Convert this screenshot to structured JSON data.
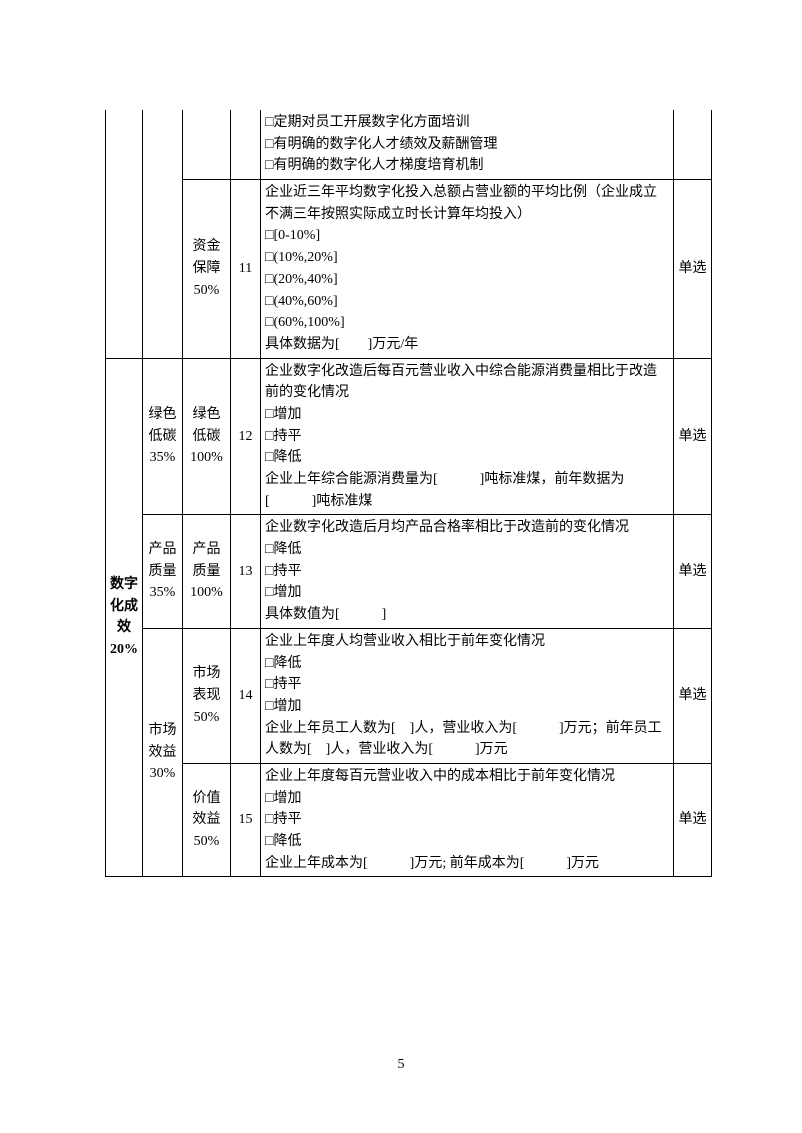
{
  "pageNumber": "5",
  "rows": [
    {
      "a": "",
      "b": "",
      "c": "",
      "d": "",
      "content": "□定期对员工开展数字化方面培训\n□有明确的数字化人才绩效及薪酬管理\n□有明确的数字化人才梯度培育机制",
      "type": ""
    },
    {
      "c": "资金保障50%",
      "d": "11",
      "content": "企业近三年平均数字化投入总额占营业额的平均比例（企业成立不满三年按照实际成立时长计算年均投入）\n□[0-10%]\n□(10%,20%]\n□(20%,40%]\n□(40%,60%]\n□(60%,100%]\n具体数据为[　　]万元/年",
      "type": "单选"
    },
    {
      "a": "数字化成效20%",
      "b": "绿色低碳35%",
      "c": "绿色低碳100%",
      "d": "12",
      "content": "企业数字化改造后每百元营业收入中综合能源消费量相比于改造前的变化情况\n□增加\n□持平\n□降低\n企业上年综合能源消费量为[　　　]吨标准煤，前年数据为[　　　]吨标准煤",
      "type": "单选"
    },
    {
      "b": "产品质量35%",
      "c": "产品质量100%",
      "d": "13",
      "content": "企业数字化改造后月均产品合格率相比于改造前的变化情况\n□降低\n□持平\n□增加\n具体数值为[　　　]",
      "type": "单选"
    },
    {
      "b": "市场效益30%",
      "c": "市场表现50%",
      "d": "14",
      "content": "企业上年度人均营业收入相比于前年变化情况\n□降低\n□持平\n□增加\n企业上年员工人数为[　]人，营业收入为[　　　]万元；前年员工人数为[　]人，营业收入为[　　　]万元",
      "type": "单选"
    },
    {
      "c": "价值效益50%",
      "d": "15",
      "content": "企业上年度每百元营业收入中的成本相比于前年变化情况\n□增加\n□持平\n□降低\n企业上年成本为[　　　]万元; 前年成本为[　　　]万元",
      "type": "单选"
    }
  ]
}
